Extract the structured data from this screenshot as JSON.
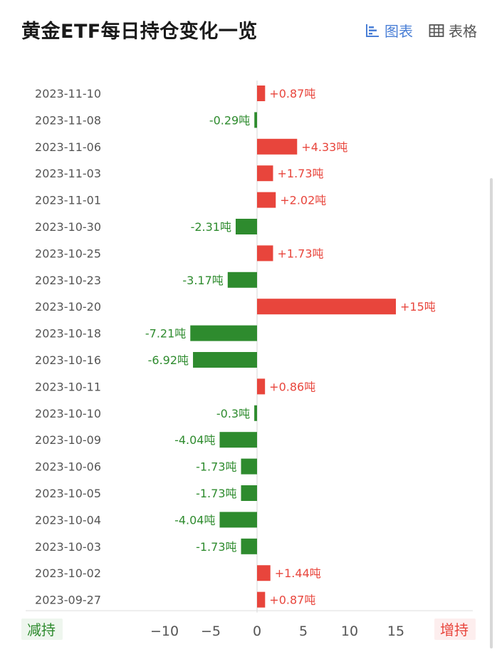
{
  "header": {
    "title": "黄金ETF每日持仓变化一览",
    "tabs": [
      {
        "label": "图表",
        "icon": "bar-chart-icon",
        "active": true
      },
      {
        "label": "表格",
        "icon": "table-icon",
        "active": false
      }
    ]
  },
  "colors": {
    "increase": "#e8453c",
    "decrease": "#2e8b2e",
    "accent": "#4a7fd6"
  },
  "chart_data": {
    "type": "bar",
    "orientation": "horizontal",
    "title": "",
    "unit": "吨",
    "categories": [
      "2023-11-10",
      "2023-11-08",
      "2023-11-06",
      "2023-11-03",
      "2023-11-01",
      "2023-10-30",
      "2023-10-25",
      "2023-10-23",
      "2023-10-20",
      "2023-10-18",
      "2023-10-16",
      "2023-10-11",
      "2023-10-10",
      "2023-10-09",
      "2023-10-06",
      "2023-10-05",
      "2023-10-04",
      "2023-10-03",
      "2023-10-02",
      "2023-09-27"
    ],
    "values": [
      0.87,
      -0.29,
      4.33,
      1.73,
      2.02,
      -2.31,
      1.73,
      -3.17,
      15,
      -7.21,
      -6.92,
      0.86,
      -0.3,
      -4.04,
      -1.73,
      -1.73,
      -4.04,
      -1.73,
      1.44,
      0.87
    ],
    "data_labels": [
      "+0.87吨",
      "-0.29吨",
      "+4.33吨",
      "+1.73吨",
      "+2.02吨",
      "-2.31吨",
      "+1.73吨",
      "-3.17吨",
      "+15吨",
      "-7.21吨",
      "-6.92吨",
      "+0.86吨",
      "-0.3吨",
      "-4.04吨",
      "-1.73吨",
      "-1.73吨",
      "-4.04吨",
      "-1.73吨",
      "+1.44吨",
      "+0.87吨"
    ],
    "xticks": [
      -10,
      -5,
      0,
      5,
      10,
      15
    ],
    "xtick_labels": [
      "−10",
      "−5",
      "0",
      "5",
      "10",
      "15"
    ],
    "xlim": [
      -10,
      15
    ],
    "left_label": "减持",
    "right_label": "增持",
    "grid": false
  }
}
